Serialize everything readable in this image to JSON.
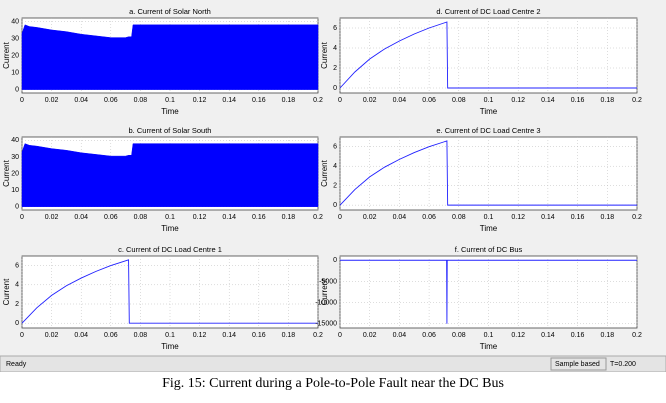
{
  "chart_data": [
    {
      "type": "area",
      "title": "a. Current of Solar North",
      "xlabel": "Time",
      "ylabel": "Current",
      "color": "#0000ff",
      "x": [
        0,
        0.002,
        0.005,
        0.01,
        0.02,
        0.03,
        0.04,
        0.05,
        0.06,
        0.07,
        0.072,
        0.074,
        0.075,
        0.08,
        0.1,
        0.12,
        0.15,
        0.2
      ],
      "values": [
        33,
        38,
        37,
        36.5,
        35,
        34,
        32.5,
        31.5,
        30.5,
        30.5,
        31,
        31,
        38,
        38,
        38,
        38,
        38,
        38
      ],
      "xlim": [
        0,
        0.2
      ],
      "ylim": [
        -2,
        42
      ],
      "xticks": [
        0,
        0.02,
        0.04,
        0.06,
        0.08,
        0.1,
        0.12,
        0.14,
        0.16,
        0.18,
        0.2
      ],
      "yticks": [
        0,
        10,
        20,
        30,
        40
      ],
      "grid": true
    },
    {
      "type": "line",
      "title": "d. Current of DC Load Centre 2",
      "xlabel": "Time",
      "ylabel": "Current",
      "color": "#2020ff",
      "x": [
        0,
        0.01,
        0.02,
        0.03,
        0.04,
        0.05,
        0.06,
        0.07,
        0.072,
        0.0725,
        0.2
      ],
      "values": [
        0,
        1.6,
        2.9,
        3.9,
        4.7,
        5.4,
        6.0,
        6.5,
        6.6,
        0,
        0
      ],
      "xlim": [
        0,
        0.2
      ],
      "ylim": [
        -0.5,
        7
      ],
      "xticks": [
        0,
        0.02,
        0.04,
        0.06,
        0.08,
        0.1,
        0.12,
        0.14,
        0.16,
        0.18,
        0.2
      ],
      "yticks": [
        0,
        2,
        4,
        6
      ],
      "grid": true
    },
    {
      "type": "area",
      "title": "b. Current of Solar South",
      "xlabel": "Time",
      "ylabel": "Current",
      "color": "#0000ff",
      "x": [
        0,
        0.002,
        0.005,
        0.01,
        0.02,
        0.03,
        0.04,
        0.05,
        0.06,
        0.07,
        0.072,
        0.074,
        0.075,
        0.08,
        0.1,
        0.12,
        0.15,
        0.2
      ],
      "values": [
        33,
        38,
        37,
        36.5,
        35,
        34,
        32.5,
        31.5,
        30.5,
        30.5,
        31,
        31,
        38,
        38,
        38,
        38,
        38,
        38
      ],
      "xlim": [
        0,
        0.2
      ],
      "ylim": [
        -2,
        42
      ],
      "xticks": [
        0,
        0.02,
        0.04,
        0.06,
        0.08,
        0.1,
        0.12,
        0.14,
        0.16,
        0.18,
        0.2
      ],
      "yticks": [
        0,
        10,
        20,
        30,
        40
      ],
      "grid": true
    },
    {
      "type": "line",
      "title": "e. Current of DC Load Centre 3",
      "xlabel": "Time",
      "ylabel": "Current",
      "color": "#2020ff",
      "x": [
        0,
        0.01,
        0.02,
        0.03,
        0.04,
        0.05,
        0.06,
        0.07,
        0.072,
        0.0725,
        0.2
      ],
      "values": [
        0,
        1.6,
        2.9,
        3.9,
        4.7,
        5.4,
        6.0,
        6.5,
        6.6,
        0,
        0
      ],
      "xlim": [
        0,
        0.2
      ],
      "ylim": [
        -0.5,
        7
      ],
      "xticks": [
        0,
        0.02,
        0.04,
        0.06,
        0.08,
        0.1,
        0.12,
        0.14,
        0.16,
        0.18,
        0.2
      ],
      "yticks": [
        0,
        2,
        4,
        6
      ],
      "grid": true
    },
    {
      "type": "line",
      "title": "c. Current of DC Load Centre 1",
      "xlabel": "Time",
      "ylabel": "Current",
      "color": "#2020ff",
      "x": [
        0,
        0.01,
        0.02,
        0.03,
        0.04,
        0.05,
        0.06,
        0.07,
        0.072,
        0.0725,
        0.2
      ],
      "values": [
        0,
        1.6,
        2.9,
        3.9,
        4.7,
        5.4,
        6.0,
        6.5,
        6.6,
        0,
        0
      ],
      "xlim": [
        0,
        0.2
      ],
      "ylim": [
        -0.5,
        7
      ],
      "xticks": [
        0,
        0.02,
        0.04,
        0.06,
        0.08,
        0.1,
        0.12,
        0.14,
        0.16,
        0.18,
        0.2
      ],
      "yticks": [
        0,
        2,
        4,
        6
      ],
      "grid": true
    },
    {
      "type": "line",
      "title": "f. Current of DC Bus",
      "xlabel": "Time",
      "ylabel": "Current",
      "color": "#2020ff",
      "x": [
        0,
        0.0718,
        0.072,
        0.0722,
        0.2
      ],
      "values": [
        0,
        0,
        -15000,
        0,
        0
      ],
      "xlim": [
        0,
        0.2
      ],
      "ylim": [
        -16000,
        1000
      ],
      "xticks": [
        0,
        0.02,
        0.04,
        0.06,
        0.08,
        0.1,
        0.12,
        0.14,
        0.16,
        0.18,
        0.2
      ],
      "yticks": [
        -15000,
        -10000,
        -5000,
        0
      ],
      "grid": true
    }
  ],
  "status_bar": {
    "status": "Ready",
    "mode": "Sample based",
    "time": "T=0.200"
  },
  "caption": "Fig. 15: Current during a Pole-to-Pole Fault near the DC Bus"
}
